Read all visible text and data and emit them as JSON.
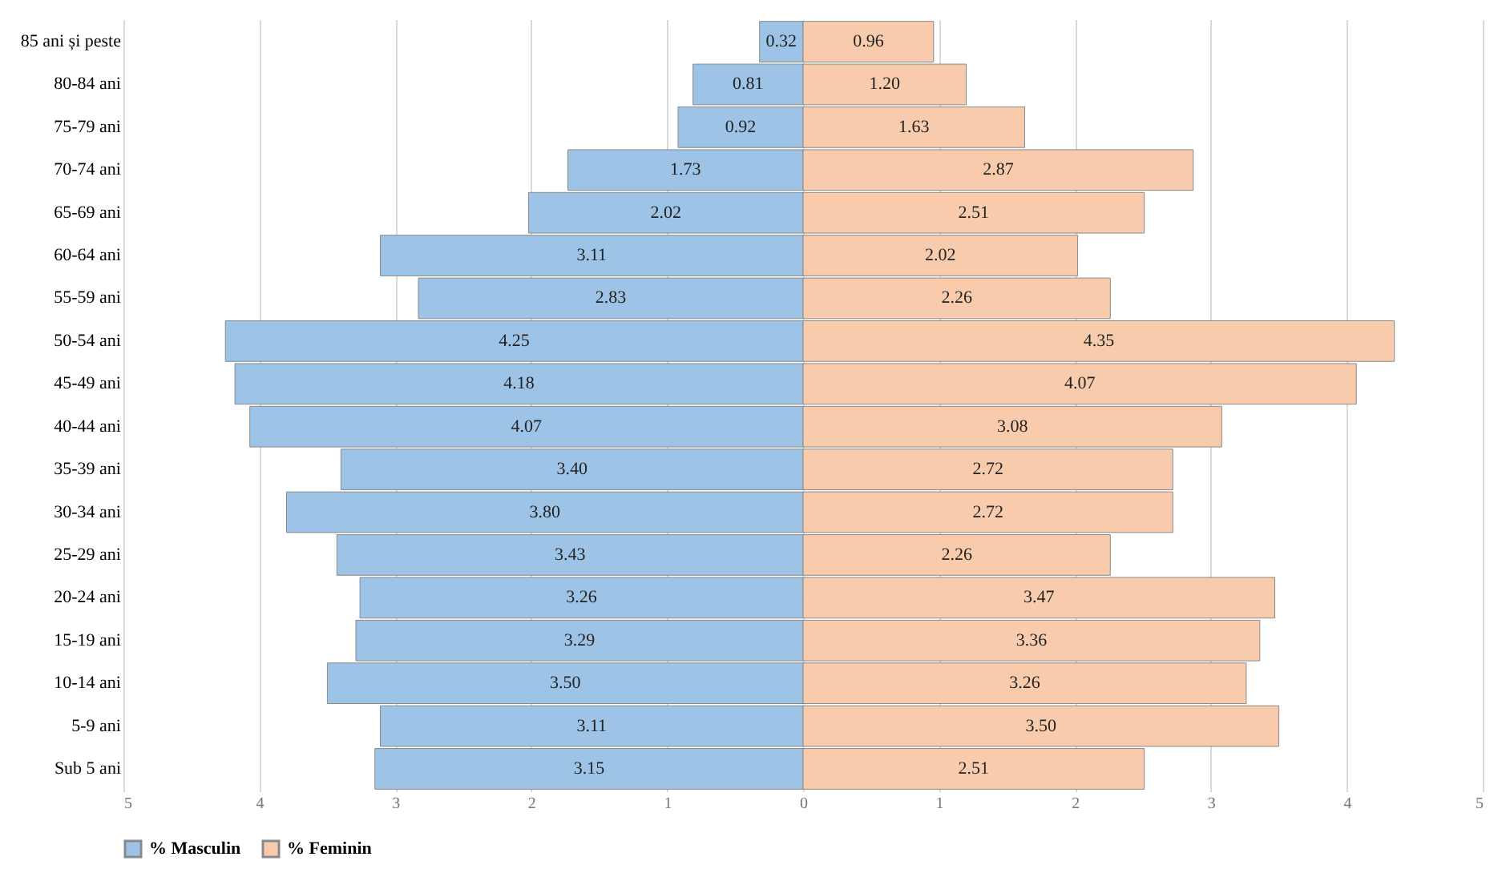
{
  "chart_data": {
    "type": "bar",
    "orientation": "horizontal",
    "categories": [
      "85 ani și peste",
      "80-84 ani",
      "75-79 ani",
      "70-74 ani",
      "65-69 ani",
      "60-64 ani",
      "55-59 ani",
      "50-54 ani",
      "45-49 ani",
      "40-44 ani",
      "35-39 ani",
      "30-34 ani",
      "25-29 ani",
      "20-24 ani",
      "15-19 ani",
      "10-14 ani",
      "5-9 ani",
      "Sub 5 ani"
    ],
    "series": [
      {
        "name": "% Masculin",
        "color": "#9dc3e6",
        "values": [
          0.32,
          0.81,
          0.92,
          1.73,
          2.02,
          3.11,
          2.83,
          4.25,
          4.18,
          4.07,
          3.4,
          3.8,
          3.43,
          3.26,
          3.29,
          3.5,
          3.11,
          3.15
        ],
        "base": [
          -0.32,
          -0.81,
          -0.92,
          -1.73,
          -2.02,
          -3.11,
          -2.83,
          -4.25,
          -4.18,
          -4.07,
          -3.4,
          -3.8,
          -3.43,
          -3.26,
          -3.29,
          -3.5,
          -3.11,
          -3.15
        ],
        "value_labels": [
          "0.32",
          "0.81",
          "0.92",
          "1.73",
          "2.02",
          "3.11",
          "2.83",
          "4.25",
          "4.18",
          "4.07",
          "3.40",
          "3.80",
          "3.43",
          "3.26",
          "3.29",
          "3.50",
          "3.11",
          "3.15"
        ]
      },
      {
        "name": "% Feminin",
        "color": "#f8cbad",
        "values": [
          0.96,
          1.2,
          1.63,
          2.87,
          2.51,
          2.02,
          2.26,
          4.35,
          4.07,
          3.08,
          2.72,
          2.72,
          2.26,
          3.47,
          3.36,
          3.26,
          3.5,
          2.51
        ],
        "value_labels": [
          "0.96",
          "1.20",
          "1.63",
          "2.87",
          "2.51",
          "2.02",
          "2.26",
          "4.35",
          "4.07",
          "3.08",
          "2.72",
          "2.72",
          "2.26",
          "3.47",
          "3.36",
          "3.26",
          "3.50",
          "2.51"
        ]
      }
    ],
    "xlim": [
      -5,
      5
    ],
    "xticks": [
      {
        "value": -5,
        "label": "5"
      },
      {
        "value": -4,
        "label": "4"
      },
      {
        "value": -3,
        "label": "3"
      },
      {
        "value": -2,
        "label": "2"
      },
      {
        "value": -1,
        "label": "1"
      },
      0,
      1,
      2,
      3,
      4,
      5
    ],
    "grid": "x",
    "legend": "bottom"
  }
}
